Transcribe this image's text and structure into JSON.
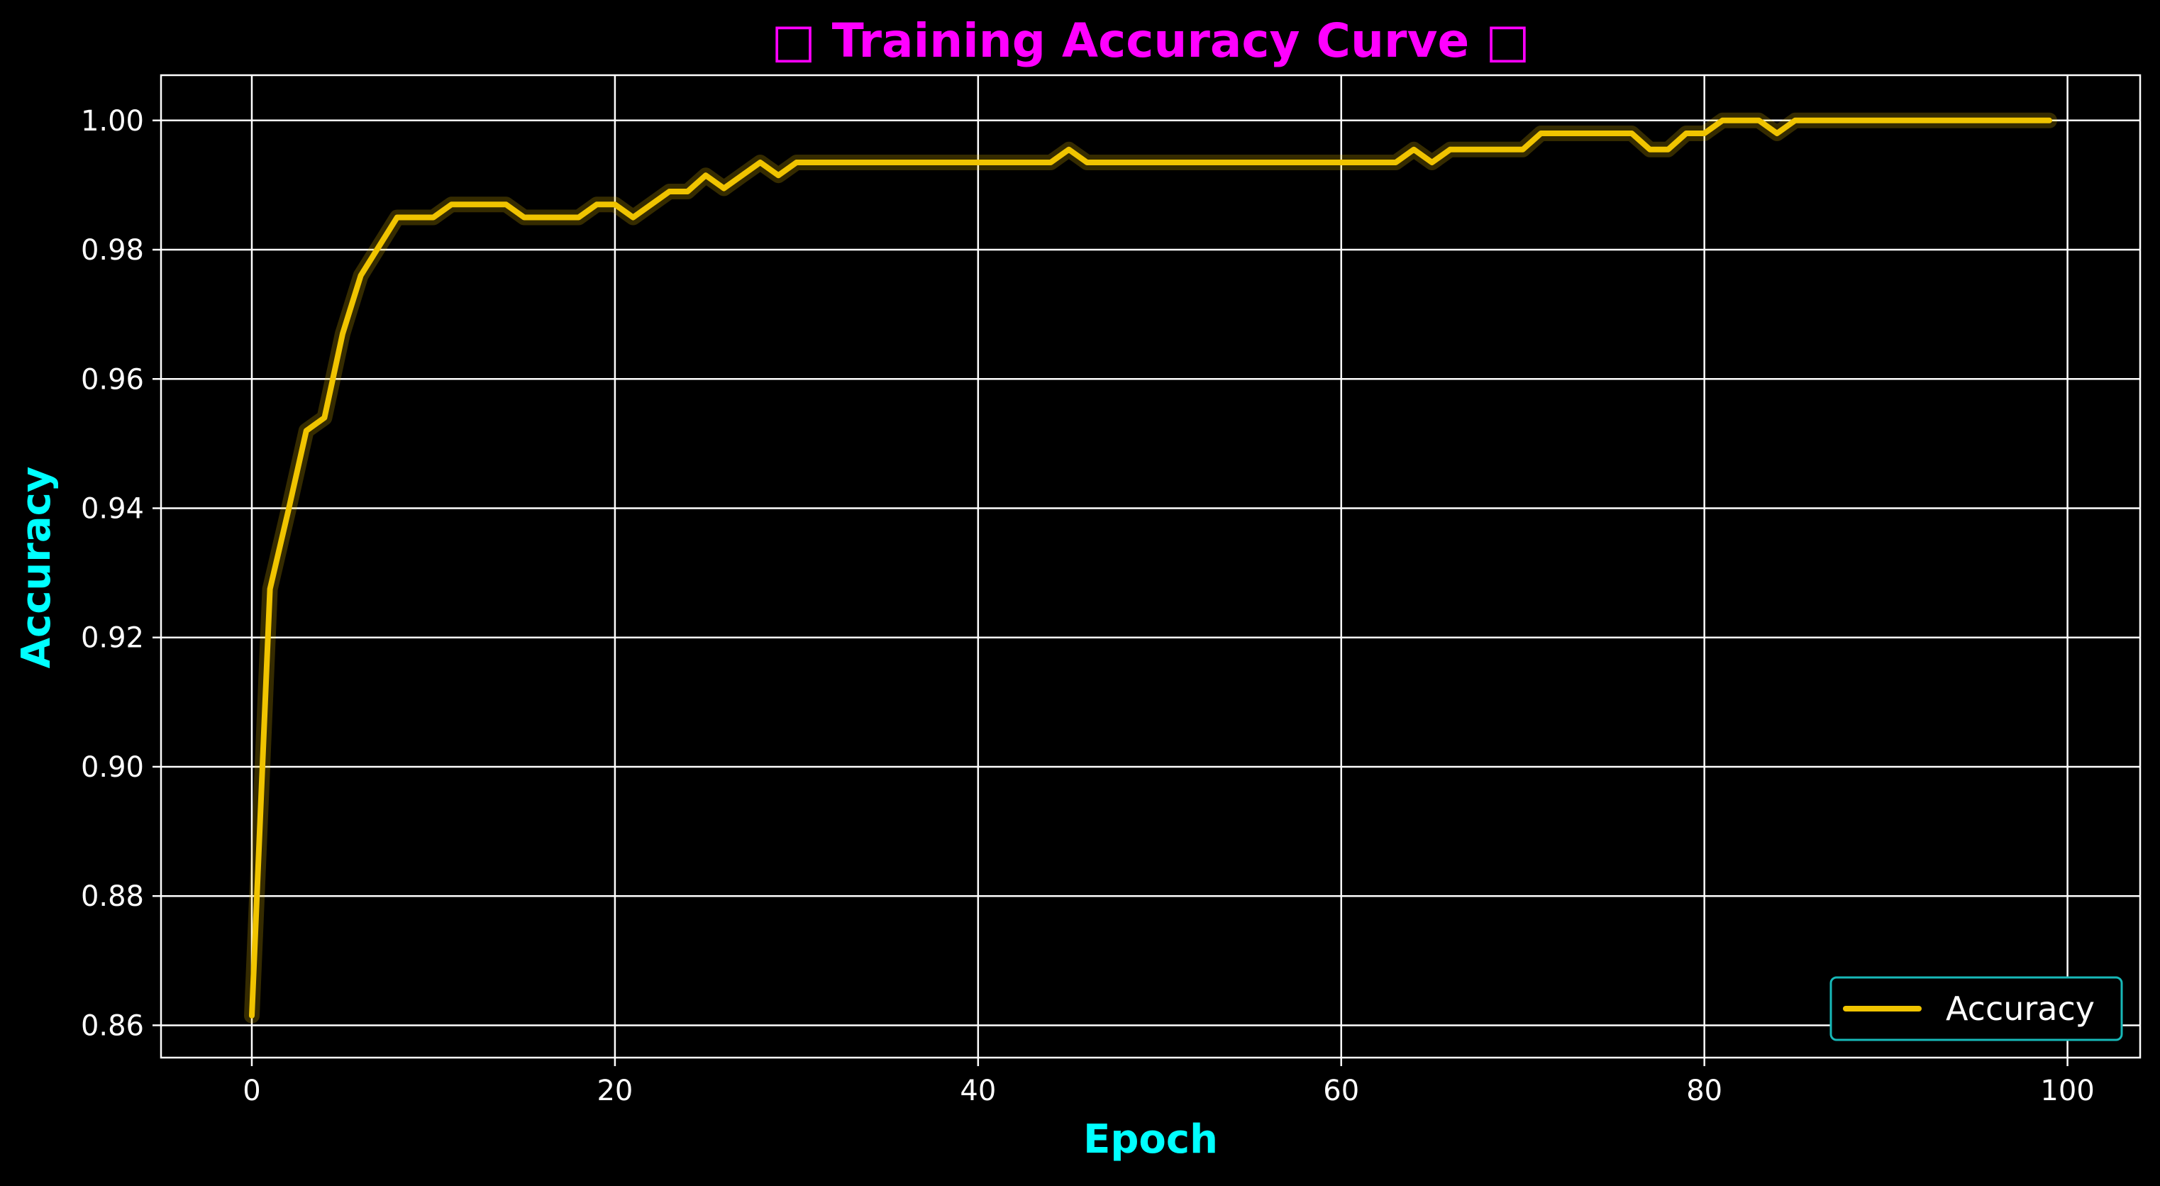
{
  "chart_data": {
    "type": "line",
    "title": "□ Training Accuracy Curve □",
    "xlabel": "Epoch",
    "ylabel": "Accuracy",
    "xlim": [
      -5,
      104
    ],
    "ylim": [
      0.855,
      1.007
    ],
    "xticks": [
      0,
      20,
      40,
      60,
      80,
      100
    ],
    "yticks": [
      0.86,
      0.88,
      0.9,
      0.92,
      0.94,
      0.96,
      0.98,
      1.0
    ],
    "xtick_labels": [
      "0",
      "20",
      "40",
      "60",
      "80",
      "100"
    ],
    "ytick_labels": [
      "0.86",
      "0.88",
      "0.90",
      "0.92",
      "0.94",
      "0.96",
      "0.98",
      "1.00"
    ],
    "grid": true,
    "legend_position": "bottom-right",
    "series": [
      {
        "name": "Accuracy",
        "color": "#f0c400",
        "x": [
          0,
          1,
          2,
          3,
          4,
          5,
          6,
          7,
          8,
          9,
          10,
          11,
          12,
          13,
          14,
          15,
          16,
          17,
          18,
          19,
          20,
          21,
          22,
          23,
          24,
          25,
          26,
          27,
          28,
          29,
          30,
          31,
          32,
          33,
          34,
          35,
          36,
          37,
          38,
          39,
          40,
          41,
          42,
          43,
          44,
          45,
          46,
          47,
          48,
          49,
          50,
          51,
          52,
          53,
          54,
          55,
          56,
          57,
          58,
          59,
          60,
          61,
          62,
          63,
          64,
          65,
          66,
          67,
          68,
          69,
          70,
          71,
          72,
          73,
          74,
          75,
          76,
          77,
          78,
          79,
          80,
          81,
          82,
          83,
          84,
          85,
          86,
          87,
          88,
          89,
          90,
          91,
          92,
          93,
          94,
          95,
          96,
          97,
          98,
          99
        ],
        "values": [
          0.8615,
          0.9275,
          0.9395,
          0.952,
          0.954,
          0.967,
          0.976,
          0.9805,
          0.985,
          0.985,
          0.985,
          0.987,
          0.987,
          0.987,
          0.987,
          0.985,
          0.985,
          0.985,
          0.985,
          0.987,
          0.987,
          0.985,
          0.987,
          0.989,
          0.989,
          0.9915,
          0.9895,
          0.9915,
          0.9935,
          0.9915,
          0.9935,
          0.9935,
          0.9935,
          0.9935,
          0.9935,
          0.9935,
          0.9935,
          0.9935,
          0.9935,
          0.9935,
          0.9935,
          0.9935,
          0.9935,
          0.9935,
          0.9935,
          0.9955,
          0.9935,
          0.9935,
          0.9935,
          0.9935,
          0.9935,
          0.9935,
          0.9935,
          0.9935,
          0.9935,
          0.9935,
          0.9935,
          0.9935,
          0.9935,
          0.9935,
          0.9935,
          0.9935,
          0.9935,
          0.9935,
          0.9955,
          0.9935,
          0.9955,
          0.9955,
          0.9955,
          0.9955,
          0.9955,
          0.998,
          0.998,
          0.998,
          0.998,
          0.998,
          0.998,
          0.9955,
          0.9955,
          0.998,
          0.998,
          1.0,
          1.0,
          1.0,
          0.998,
          1.0,
          1.0,
          1.0,
          1.0,
          1.0,
          1.0,
          1.0,
          1.0,
          1.0,
          1.0,
          1.0,
          1.0,
          1.0,
          1.0,
          1.0
        ]
      }
    ]
  },
  "colors": {
    "background": "#000000",
    "grid": "#ffffff",
    "title": "#ff00ff",
    "axis_title": "#00ffff",
    "legend_border": "#17b8b8"
  }
}
